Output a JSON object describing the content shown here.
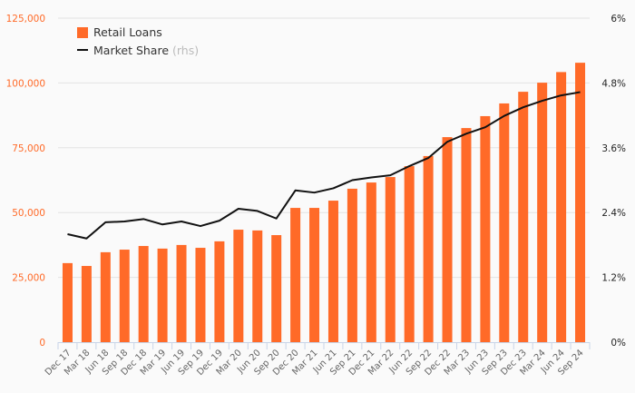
{
  "chart_data": {
    "type": "bar",
    "title": "",
    "categories": [
      "Dec 17",
      "Mar 18",
      "Jun 18",
      "Sep 18",
      "Dec 18",
      "Mar 19",
      "Jun 19",
      "Sep 19",
      "Dec 19",
      "Mar 20",
      "Jun 20",
      "Sep 20",
      "Dec 20",
      "Mar 21",
      "Jun 21",
      "Sep 21",
      "Dec 21",
      "Mar 22",
      "Jun 22",
      "Sep 22",
      "Dec 22",
      "Mar 23",
      "Jun 23",
      "Sep 23",
      "Dec 23",
      "Mar 24",
      "Jun 24",
      "Sep 24"
    ],
    "series": [
      {
        "name": "Retail Loans",
        "type": "bar",
        "axis": "left",
        "color": "#ff6a28",
        "values": [
          30500,
          29400,
          34700,
          35700,
          37100,
          36100,
          37500,
          36400,
          38900,
          43400,
          43100,
          41300,
          51800,
          51800,
          54600,
          59200,
          61600,
          63700,
          67900,
          71800,
          79100,
          82600,
          87200,
          92100,
          96600,
          100100,
          104200,
          107800
        ]
      },
      {
        "name": "Market Share",
        "name_suffix": "(rhs)",
        "type": "line",
        "axis": "right",
        "color": "#111111",
        "values": [
          2.0,
          1.92,
          2.22,
          2.235,
          2.28,
          2.18,
          2.235,
          2.15,
          2.25,
          2.47,
          2.43,
          2.29,
          2.81,
          2.77,
          2.85,
          3.0,
          3.05,
          3.09,
          3.26,
          3.41,
          3.71,
          3.86,
          3.98,
          4.19,
          4.35,
          4.47,
          4.57,
          4.63
        ]
      }
    ],
    "yleft": {
      "ylim": [
        0,
        125000
      ],
      "ticks": [
        "0",
        "25,000",
        "50,000",
        "75,000",
        "100,000",
        "125,000"
      ]
    },
    "yright": {
      "ylim": [
        0,
        6
      ],
      "ticks": [
        "0%",
        "1.2%",
        "2.4%",
        "3.6%",
        "4.8%",
        "6%"
      ]
    },
    "grid": true,
    "legend_position": "top-left"
  }
}
